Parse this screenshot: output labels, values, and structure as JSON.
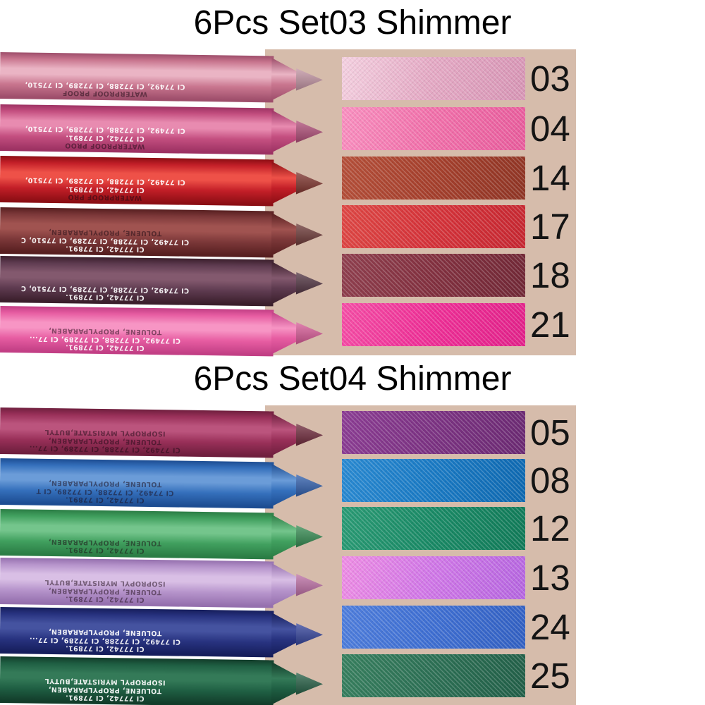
{
  "background": {
    "page": "#ffffff",
    "panel": "#d6bcab",
    "title_color": "#000000",
    "number_color": "#141414"
  },
  "sets": [
    {
      "title": "6Pcs Set03 Shimmer",
      "items": [
        {
          "number": "03",
          "pencil": {
            "light": "#eab4c4",
            "mid": "#c9768f",
            "dark": "#9e4e6b",
            "lead": "#c795a5",
            "print_lines": [
              {
                "text": "WATERPROOF PROOF",
                "tone": "dark"
              },
              {
                "text": "CI 77492, CI 77288, CI 77289, CI 77510,",
                "tone": "light"
              }
            ]
          },
          "swatch": {
            "light": "#f4d0e0",
            "base": "#e4a9c4",
            "dark": "#d795b5"
          }
        },
        {
          "number": "04",
          "pencil": {
            "light": "#e88bb0",
            "mid": "#c44f80",
            "dark": "#9d3263",
            "lead": "#b44a78",
            "print_lines": [
              {
                "text": "WATERPROOF PROO",
                "tone": "dark"
              },
              {
                "text": "CI 77742, CI 77891.",
                "tone": "light"
              },
              {
                "text": "CI 77492, CI 77288, CI 77289, CI 77510,",
                "tone": "light"
              }
            ]
          },
          "swatch": {
            "light": "#f990c0",
            "base": "#f170aa",
            "dark": "#e85c9c"
          }
        },
        {
          "number": "14",
          "pencil": {
            "light": "#ee5148",
            "mid": "#c31f28",
            "dark": "#8c0e14",
            "lead": "#7e2d26",
            "print_lines": [
              {
                "text": "WATERPROOF PRO",
                "tone": "dark"
              },
              {
                "text": "CI 77742, CI 77891.",
                "tone": "light"
              },
              {
                "text": "CI 77492, CI 77288, CI 77289, CI 77510,",
                "tone": "light"
              }
            ]
          },
          "swatch": {
            "light": "#b5503a",
            "base": "#a6402d",
            "dark": "#8f3525"
          }
        },
        {
          "number": "17",
          "pencil": {
            "light": "#a05350",
            "mid": "#7c3839",
            "dark": "#571f20",
            "lead": "#6b3331",
            "print_lines": [
              {
                "text": "CI 77742, CI 77891.",
                "tone": "light"
              },
              {
                "text": "CI 77492, CI 77288, CI 77289, CI 77510, C",
                "tone": "light"
              },
              {
                "text": "TOLUENE, PROPYLPARABEN,",
                "tone": "dark"
              }
            ]
          },
          "swatch": {
            "light": "#de4845",
            "base": "#d5333a",
            "dark": "#c62731"
          }
        },
        {
          "number": "18",
          "pencil": {
            "light": "#83596e",
            "mid": "#5e3b50",
            "dark": "#3b1f2c",
            "lead": "#4e2e3d",
            "print_lines": [
              {
                "text": "CI 77742, CI 77891.",
                "tone": "light"
              },
              {
                "text": "CI 77492, CI 77288, CI 77289, CI 77510, C",
                "tone": "light"
              }
            ]
          },
          "swatch": {
            "light": "#90404f",
            "base": "#833140",
            "dark": "#712836"
          }
        },
        {
          "number": "21",
          "pencil": {
            "light": "#f795c4",
            "mid": "#e75da2",
            "dark": "#c23f85",
            "lead": "#df5899",
            "print_lines": [
              {
                "text": "CI 77742, CI 77891.",
                "tone": "light"
              },
              {
                "text": "CI 77492, CI 77288, CI 77289, CI 77...",
                "tone": "light"
              },
              {
                "text": "TOLUENE, PROPYLPARABEN,",
                "tone": "dark"
              }
            ]
          },
          "swatch": {
            "light": "#f54fa6",
            "base": "#ee2f96",
            "dark": "#e2228a"
          }
        }
      ]
    },
    {
      "title": "6Pcs Set04 Shimmer",
      "items": [
        {
          "number": "05",
          "pencil": {
            "light": "#bb547d",
            "mid": "#993059",
            "dark": "#6f1f3e",
            "lead": "#6e2336",
            "print_lines": [
              {
                "text": "CI 77492, CI 77288, CI 77289, CI 77...",
                "tone": "dark"
              },
              {
                "text": "TOLUENE, PROPYLPARABEN,",
                "tone": "dark"
              },
              {
                "text": "ISOPROPYL MYRISTATE,BUTYL",
                "tone": "dark"
              }
            ]
          },
          "swatch": {
            "light": "#8c3d94",
            "base": "#7c3383",
            "dark": "#6b2a72"
          }
        },
        {
          "number": "08",
          "pencil": {
            "light": "#6b9cd8",
            "mid": "#3570bc",
            "dark": "#1d4d92",
            "lead": "#2a5cb0",
            "print_lines": [
              {
                "text": "CI 77742, CI 77891.",
                "tone": "dark"
              },
              {
                "text": "CI 77492, CI 77288, CI 77289, CI T",
                "tone": "dark"
              },
              {
                "text": "TOLUENE, PROPYLPARABEN,",
                "tone": "dark"
              }
            ]
          },
          "swatch": {
            "light": "#2a8ad2",
            "base": "#1a7ac4",
            "dark": "#0e68b0"
          }
        },
        {
          "number": "12",
          "pencil": {
            "light": "#74c58c",
            "mid": "#41a05f",
            "dark": "#2b7d45",
            "lead": "#2f8c4e",
            "print_lines": [
              {
                "text": "CI 77742, CI 77891.",
                "tone": "dark"
              },
              {
                "text": "TOLUENE, PROPYLPARABEN,",
                "tone": "dark"
              }
            ]
          },
          "swatch": {
            "light": "#2b9b75",
            "base": "#1a8a66",
            "dark": "#117a58"
          }
        },
        {
          "number": "13",
          "pencil": {
            "light": "#d9bfe5",
            "mid": "#b795cc",
            "dark": "#9570ae",
            "lead": "#c26ea8",
            "print_lines": [
              {
                "text": "CI 77742, CI 77891.",
                "tone": "dark"
              },
              {
                "text": "TOLUENE, PROPYLPARABEN,",
                "tone": "dark"
              },
              {
                "text": "ISOPROPYL MYRISTATE,BUTYL",
                "tone": "dark"
              }
            ]
          },
          "swatch": {
            "light": "#ee8de4",
            "base": "#d077e7",
            "dark": "#b566e0"
          }
        },
        {
          "number": "24",
          "pencil": {
            "light": "#4553a0",
            "mid": "#283380",
            "dark": "#161e5c",
            "lead": "#2e3f9e",
            "print_lines": [
              {
                "text": "CI 77742, CI 77891.",
                "tone": "light"
              },
              {
                "text": "CI 77492, CI 77288, CI 77289, CI 77...",
                "tone": "light"
              },
              {
                "text": "TOLUENE, PROPYLPARABEN,",
                "tone": "light"
              }
            ]
          },
          "swatch": {
            "light": "#4f7edc",
            "base": "#3f6fd2",
            "dark": "#3260c2"
          }
        },
        {
          "number": "25",
          "pencil": {
            "light": "#347a58",
            "mid": "#1f5f43",
            "dark": "#123c2a",
            "lead": "#1e5c40",
            "print_lines": [
              {
                "text": "CI 77742, CI 77891.",
                "tone": "light"
              },
              {
                "text": "TOLUENE, PROPYLPARABEN,",
                "tone": "light"
              },
              {
                "text": "ISOPROPYL MYRISTATE,BUTYL",
                "tone": "light"
              }
            ]
          },
          "swatch": {
            "light": "#38805f",
            "base": "#2d7055",
            "dark": "#225f48"
          }
        }
      ]
    }
  ]
}
